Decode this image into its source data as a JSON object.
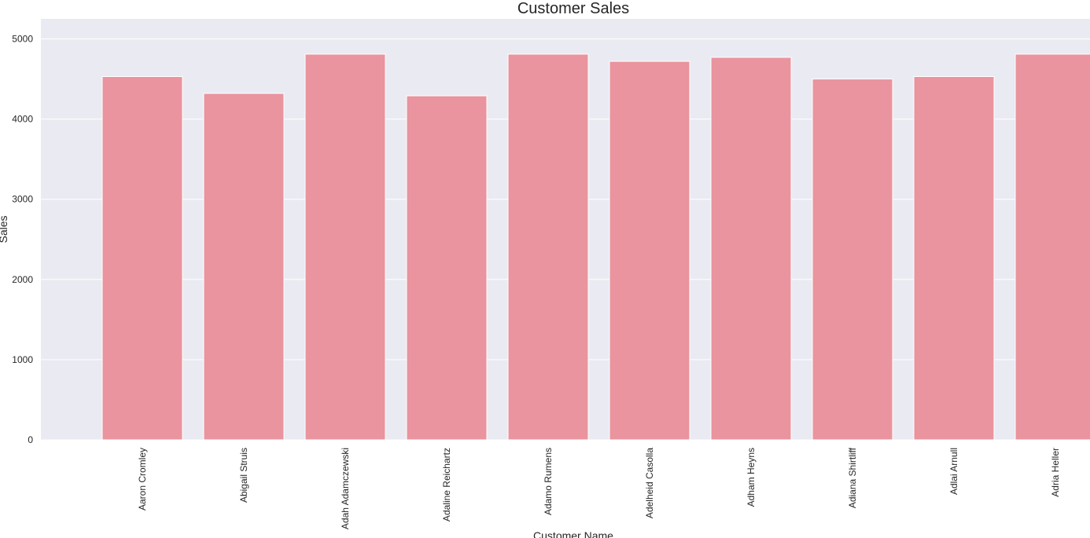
{
  "chart_data": {
    "type": "bar",
    "title": "Customer Sales",
    "xlabel": "Customer Name",
    "ylabel": "Sales",
    "categories": [
      "Aaron Cromley",
      "Abigail Struis",
      "Adah Adamczewski",
      "Adaline Reichartz",
      "Adamo Rumens",
      "Adelheid Casolla",
      "Adham Heyns",
      "Adiana Shirtliff",
      "Adlai Arnull",
      "Adria Heller"
    ],
    "values": [
      4530,
      4320,
      4810,
      4290,
      4810,
      4720,
      4770,
      4500,
      4530,
      4810
    ],
    "ylim": [
      0,
      5250
    ],
    "yticks": [
      0,
      1000,
      2000,
      3000,
      4000,
      5000
    ],
    "grid": true,
    "legend": "none",
    "colors": {
      "bar": "#e9949e",
      "plot_background": "#eaeaf2",
      "grid": "#ffffff",
      "text": "#262626"
    }
  }
}
